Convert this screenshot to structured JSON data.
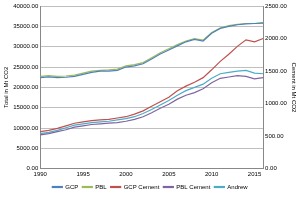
{
  "chart_data": {
    "type": "line",
    "y_label": "Total in Mt CO2",
    "y2_label": "Cement in Mt CO2",
    "x": [
      1990,
      1991,
      1992,
      1993,
      1994,
      1995,
      1996,
      1997,
      1998,
      1999,
      2000,
      2001,
      2002,
      2003,
      2004,
      2005,
      2006,
      2007,
      2008,
      2009,
      2010,
      2011,
      2012,
      2013,
      2014,
      2015,
      2016
    ],
    "xlim": [
      1990,
      2016
    ],
    "xticks": [
      1990,
      1995,
      2000,
      2005,
      2010,
      2015
    ],
    "ylim": [
      0,
      40000
    ],
    "yticks": [
      {
        "value": 0,
        "label": "0.00"
      },
      {
        "value": 5000,
        "label": "5000.00"
      },
      {
        "value": 10000,
        "label": "10000.00"
      },
      {
        "value": 15000,
        "label": "15000.00"
      },
      {
        "value": 20000,
        "label": "20000.00"
      },
      {
        "value": 25000,
        "label": "25000.00"
      },
      {
        "value": 30000,
        "label": "30000.00"
      },
      {
        "value": 35000,
        "label": "35000.00"
      },
      {
        "value": 40000,
        "label": "40000.00"
      }
    ],
    "y2lim": [
      0,
      2500
    ],
    "y2ticks": [
      {
        "value": 0,
        "label": "0.00"
      },
      {
        "value": 500,
        "label": "500.00"
      },
      {
        "value": 1000,
        "label": "1000.00"
      },
      {
        "value": 1500,
        "label": "1500.00"
      },
      {
        "value": 2000,
        "label": "2000.00"
      },
      {
        "value": 2500,
        "label": "2500.00"
      }
    ],
    "grid": true,
    "legend": "bottom",
    "series": [
      {
        "name": "GCP",
        "color": "#4f81bd",
        "values": [
          22400,
          22600,
          22400,
          22500,
          22700,
          23200,
          23700,
          24000,
          24000,
          24200,
          25000,
          25300,
          25800,
          27000,
          28200,
          29200,
          30200,
          31200,
          31800,
          31400,
          33300,
          34500,
          35000,
          35400,
          35600,
          35700,
          35800
        ]
      },
      {
        "name": "PBL",
        "color": "#9bbb59",
        "values": [
          22700,
          22900,
          22700,
          22800,
          23000,
          23500,
          24000,
          24200,
          24300,
          24500,
          25300,
          25600,
          26100,
          27300,
          28500,
          29500,
          30500,
          31400,
          32000,
          31600,
          33500,
          34600,
          35200,
          35500,
          35700,
          35700,
          35900
        ]
      },
      {
        "name": "GCP Cement",
        "color": "#c0504d",
        "axis": "y2",
        "values": [
          570,
          590,
          620,
          660,
          700,
          720,
          740,
          750,
          760,
          780,
          800,
          840,
          890,
          960,
          1030,
          1100,
          1200,
          1270,
          1330,
          1400,
          1520,
          1650,
          1760,
          1880,
          1980,
          1950,
          2000
        ]
      },
      {
        "name": "PBL Cement",
        "color": "#8064a2",
        "axis": "y2",
        "values": [
          520,
          540,
          570,
          600,
          640,
          660,
          680,
          690,
          700,
          710,
          730,
          760,
          800,
          860,
          930,
          990,
          1070,
          1130,
          1170,
          1230,
          1320,
          1390,
          1410,
          1430,
          1420,
          1380,
          1400
        ]
      },
      {
        "name": "Andrew",
        "color": "#4bacc6",
        "axis": "y2",
        "values": [
          540,
          560,
          590,
          630,
          670,
          690,
          710,
          720,
          730,
          750,
          770,
          800,
          850,
          910,
          980,
          1050,
          1130,
          1200,
          1250,
          1300,
          1390,
          1460,
          1480,
          1500,
          1510,
          1470,
          1460
        ]
      }
    ]
  }
}
